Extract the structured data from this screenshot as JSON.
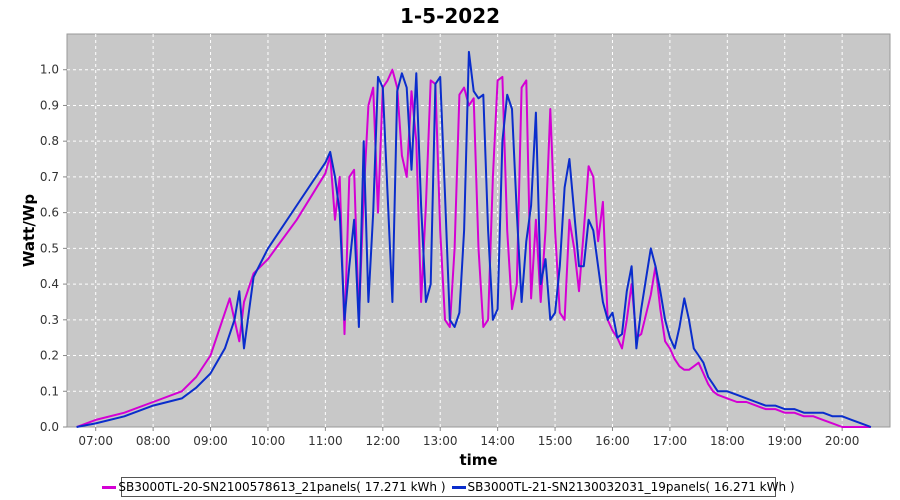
{
  "colors": {
    "plot_bg": "#c8c8c8",
    "grid": "#ffffff",
    "series_1": "#d400d4",
    "series_2": "#0a2dcc"
  },
  "chart_data": {
    "type": "line",
    "title": "1-5-2022",
    "xlabel": "time",
    "ylabel": "Watt/Wp",
    "xlim": [
      "06:30",
      "20:50"
    ],
    "ylim": [
      0,
      1.1
    ],
    "x_ticks": [
      "07:00",
      "08:00",
      "09:00",
      "10:00",
      "11:00",
      "12:00",
      "13:00",
      "14:00",
      "15:00",
      "16:00",
      "17:00",
      "18:00",
      "19:00",
      "20:00"
    ],
    "y_ticks": [
      "0.0",
      "0.1",
      "0.2",
      "0.3",
      "0.4",
      "0.5",
      "0.6",
      "0.7",
      "0.8",
      "0.9",
      "1.0"
    ],
    "grid": true,
    "legend_position": "bottom",
    "series": [
      {
        "name": "SB3000TL-20-SN2100578613_21panels",
        "legend_label": "SB3000TL-20-SN2100578613_21panels( 17.271 kWh )",
        "x": [
          "06:40",
          "07:00",
          "07:30",
          "08:00",
          "08:30",
          "08:45",
          "09:00",
          "09:15",
          "09:20",
          "09:30",
          "09:35",
          "09:45",
          "10:00",
          "10:30",
          "11:00",
          "11:05",
          "11:10",
          "11:15",
          "11:20",
          "11:25",
          "11:30",
          "11:35",
          "11:40",
          "11:45",
          "11:50",
          "11:55",
          "12:00",
          "12:05",
          "12:10",
          "12:15",
          "12:20",
          "12:25",
          "12:30",
          "12:35",
          "12:40",
          "12:45",
          "12:50",
          "12:55",
          "13:00",
          "13:05",
          "13:10",
          "13:15",
          "13:20",
          "13:25",
          "13:30",
          "13:35",
          "13:40",
          "13:45",
          "13:50",
          "13:55",
          "14:00",
          "14:05",
          "14:10",
          "14:15",
          "14:20",
          "14:25",
          "14:30",
          "14:35",
          "14:40",
          "14:45",
          "14:50",
          "14:55",
          "15:00",
          "15:05",
          "15:10",
          "15:15",
          "15:20",
          "15:25",
          "15:30",
          "15:35",
          "15:40",
          "15:45",
          "15:50",
          "15:55",
          "16:00",
          "16:05",
          "16:10",
          "16:15",
          "16:20",
          "16:25",
          "16:30",
          "16:40",
          "16:45",
          "16:50",
          "16:55",
          "17:00",
          "17:05",
          "17:10",
          "17:15",
          "17:20",
          "17:25",
          "17:30",
          "17:35",
          "17:40",
          "17:45",
          "17:50",
          "18:00",
          "18:10",
          "18:20",
          "18:30",
          "18:40",
          "18:50",
          "19:00",
          "19:10",
          "19:20",
          "19:30",
          "19:40",
          "19:50",
          "20:00",
          "20:10",
          "20:20",
          "20:30"
        ],
        "y": [
          0.0,
          0.02,
          0.04,
          0.07,
          0.1,
          0.14,
          0.2,
          0.32,
          0.36,
          0.24,
          0.35,
          0.43,
          0.47,
          0.58,
          0.71,
          0.76,
          0.58,
          0.7,
          0.26,
          0.7,
          0.72,
          0.3,
          0.65,
          0.9,
          0.95,
          0.6,
          0.95,
          0.97,
          1.0,
          0.95,
          0.76,
          0.7,
          0.94,
          0.8,
          0.35,
          0.62,
          0.97,
          0.96,
          0.55,
          0.3,
          0.28,
          0.5,
          0.93,
          0.95,
          0.9,
          0.92,
          0.5,
          0.28,
          0.3,
          0.7,
          0.97,
          0.98,
          0.55,
          0.33,
          0.4,
          0.95,
          0.97,
          0.36,
          0.58,
          0.35,
          0.55,
          0.89,
          0.55,
          0.32,
          0.3,
          0.58,
          0.5,
          0.38,
          0.55,
          0.73,
          0.7,
          0.52,
          0.63,
          0.3,
          0.27,
          0.25,
          0.22,
          0.3,
          0.4,
          0.25,
          0.26,
          0.37,
          0.45,
          0.33,
          0.24,
          0.22,
          0.19,
          0.17,
          0.16,
          0.16,
          0.17,
          0.18,
          0.15,
          0.12,
          0.1,
          0.09,
          0.08,
          0.07,
          0.07,
          0.06,
          0.05,
          0.05,
          0.04,
          0.04,
          0.03,
          0.03,
          0.02,
          0.01,
          0.0,
          0.0,
          0.0,
          0.0
        ]
      },
      {
        "name": "SB3000TL-21-SN2130032031_19panels",
        "legend_label": "SB3000TL-21-SN2130032031_19panels( 16.271 kWh )",
        "x": [
          "06:40",
          "07:00",
          "07:30",
          "08:00",
          "08:30",
          "08:45",
          "09:00",
          "09:15",
          "09:25",
          "09:30",
          "09:35",
          "09:45",
          "10:00",
          "10:30",
          "11:00",
          "11:05",
          "11:10",
          "11:15",
          "11:20",
          "11:25",
          "11:30",
          "11:35",
          "11:40",
          "11:45",
          "11:50",
          "11:55",
          "12:00",
          "12:05",
          "12:10",
          "12:15",
          "12:20",
          "12:25",
          "12:30",
          "12:35",
          "12:40",
          "12:45",
          "12:50",
          "12:55",
          "13:00",
          "13:05",
          "13:10",
          "13:15",
          "13:20",
          "13:25",
          "13:30",
          "13:35",
          "13:40",
          "13:45",
          "13:50",
          "13:55",
          "14:00",
          "14:05",
          "14:10",
          "14:15",
          "14:20",
          "14:25",
          "14:30",
          "14:35",
          "14:40",
          "14:45",
          "14:50",
          "14:55",
          "15:00",
          "15:05",
          "15:10",
          "15:15",
          "15:20",
          "15:25",
          "15:30",
          "15:35",
          "15:40",
          "15:45",
          "15:50",
          "15:55",
          "16:00",
          "16:05",
          "16:10",
          "16:15",
          "16:20",
          "16:25",
          "16:30",
          "16:40",
          "16:45",
          "16:50",
          "16:55",
          "17:00",
          "17:05",
          "17:10",
          "17:15",
          "17:20",
          "17:25",
          "17:30",
          "17:35",
          "17:40",
          "17:45",
          "17:50",
          "18:00",
          "18:10",
          "18:20",
          "18:30",
          "18:40",
          "18:50",
          "19:00",
          "19:10",
          "19:20",
          "19:30",
          "19:40",
          "19:50",
          "20:00",
          "20:10",
          "20:20",
          "20:30"
        ],
        "y": [
          0.0,
          0.01,
          0.03,
          0.06,
          0.08,
          0.11,
          0.15,
          0.22,
          0.3,
          0.38,
          0.22,
          0.42,
          0.5,
          0.62,
          0.74,
          0.77,
          0.7,
          0.6,
          0.3,
          0.45,
          0.58,
          0.28,
          0.8,
          0.35,
          0.6,
          0.98,
          0.95,
          0.65,
          0.35,
          0.94,
          0.99,
          0.95,
          0.72,
          0.99,
          0.62,
          0.35,
          0.4,
          0.96,
          0.98,
          0.65,
          0.3,
          0.28,
          0.32,
          0.55,
          1.05,
          0.94,
          0.92,
          0.93,
          0.55,
          0.3,
          0.33,
          0.8,
          0.93,
          0.89,
          0.6,
          0.35,
          0.52,
          0.62,
          0.88,
          0.4,
          0.47,
          0.3,
          0.32,
          0.45,
          0.67,
          0.75,
          0.6,
          0.45,
          0.45,
          0.58,
          0.55,
          0.45,
          0.35,
          0.3,
          0.32,
          0.25,
          0.26,
          0.38,
          0.45,
          0.22,
          0.33,
          0.5,
          0.45,
          0.38,
          0.3,
          0.25,
          0.22,
          0.28,
          0.36,
          0.3,
          0.22,
          0.2,
          0.18,
          0.14,
          0.12,
          0.1,
          0.1,
          0.09,
          0.08,
          0.07,
          0.06,
          0.06,
          0.05,
          0.05,
          0.04,
          0.04,
          0.04,
          0.03,
          0.03,
          0.02,
          0.01,
          0.0
        ]
      }
    ]
  }
}
